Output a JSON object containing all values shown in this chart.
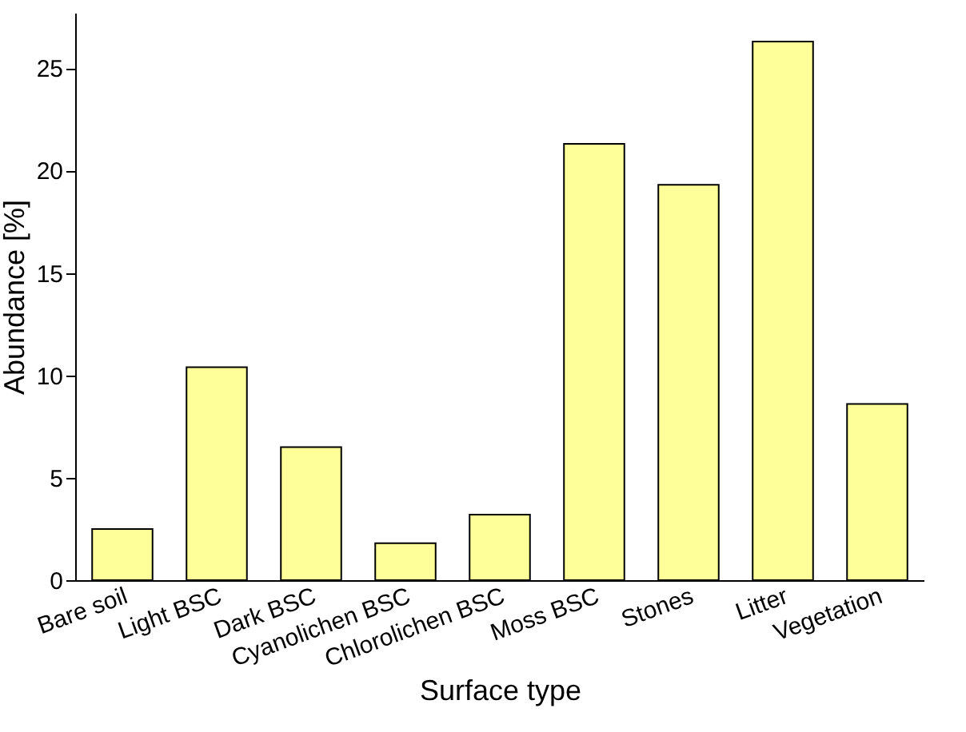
{
  "chart_data": {
    "type": "bar",
    "xlabel": "Surface type",
    "ylabel": "Abundance [%]",
    "categories": [
      "Bare soil",
      "Light BSC",
      "Dark BSC",
      "Cyanolichen BSC",
      "Chlorolichen BSC",
      "Moss BSC",
      "Stones",
      "Litter",
      "Vegetation"
    ],
    "values": [
      2.5,
      10.4,
      6.5,
      1.8,
      3.2,
      21.3,
      19.3,
      26.3,
      8.6
    ],
    "color": "#ffff99",
    "ylim": [
      0,
      27.7
    ],
    "yticks": [
      0,
      5,
      10,
      15,
      20,
      25
    ],
    "grid": false
  }
}
